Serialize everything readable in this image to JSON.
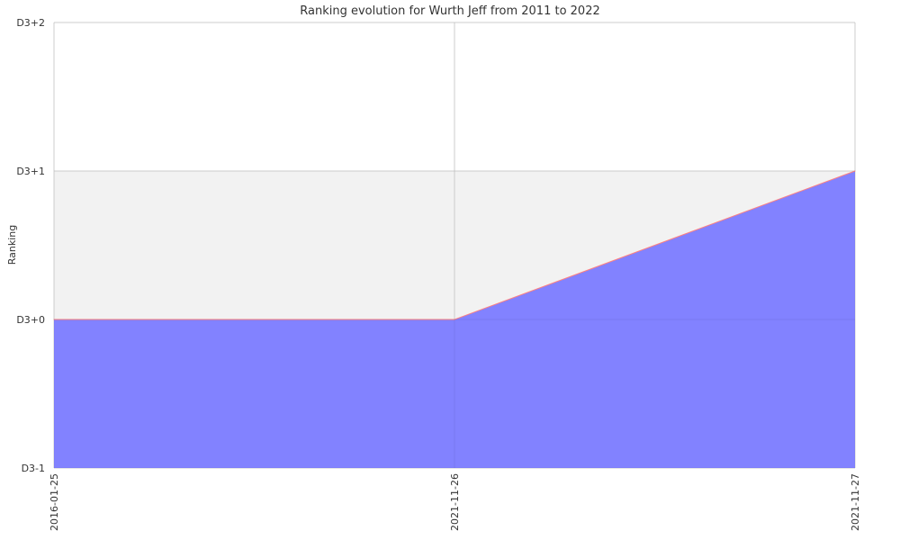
{
  "chart_data": {
    "type": "area",
    "title": "Ranking evolution for Wurth Jeff from 2011 to 2022",
    "xlabel": "",
    "ylabel": "Ranking",
    "x": [
      "2016-01-25",
      "2021-11-26",
      "2021-11-27"
    ],
    "series": [
      {
        "values": [
          0,
          0,
          1
        ]
      }
    ],
    "y_ticks": [
      {
        "value": -1,
        "label": "D3-1"
      },
      {
        "value": 0,
        "label": "D3+0"
      },
      {
        "value": 1,
        "label": "D3+1"
      },
      {
        "value": 2,
        "label": "D3+2"
      }
    ],
    "ylim": [
      -1,
      2
    ],
    "grid": true,
    "legend": "none",
    "colors": {
      "fill": "#8080ff",
      "line": "#ff8080",
      "band": "#f2f2f2",
      "grid": "#d9d9d9"
    }
  }
}
